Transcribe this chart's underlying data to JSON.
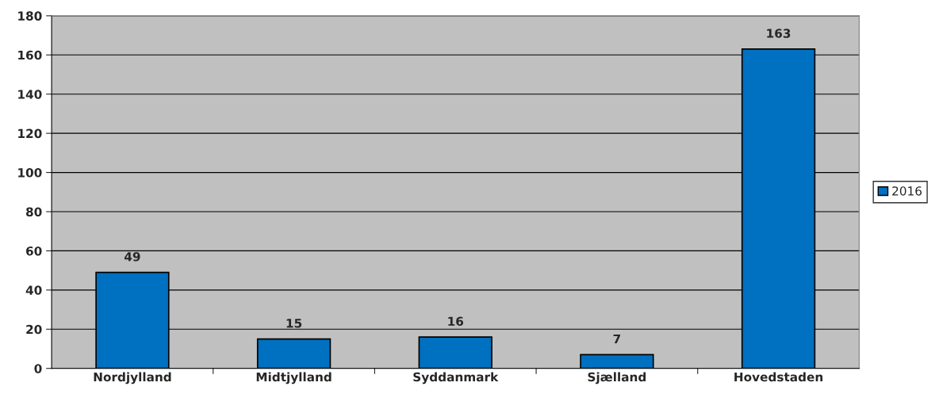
{
  "chart_data": {
    "type": "bar",
    "categories": [
      "Nordjylland",
      "Midtjylland",
      "Syddanmark",
      "Sjælland",
      "Hovedstaden"
    ],
    "series": [
      {
        "name": "2016",
        "color": "#0070c0",
        "values": [
          49,
          15,
          16,
          7,
          163
        ]
      }
    ],
    "ylim": [
      0,
      180
    ],
    "yticks": [
      0,
      20,
      40,
      60,
      80,
      100,
      120,
      140,
      160,
      180
    ],
    "grid": "y",
    "legend": "right",
    "data_labels": true
  }
}
